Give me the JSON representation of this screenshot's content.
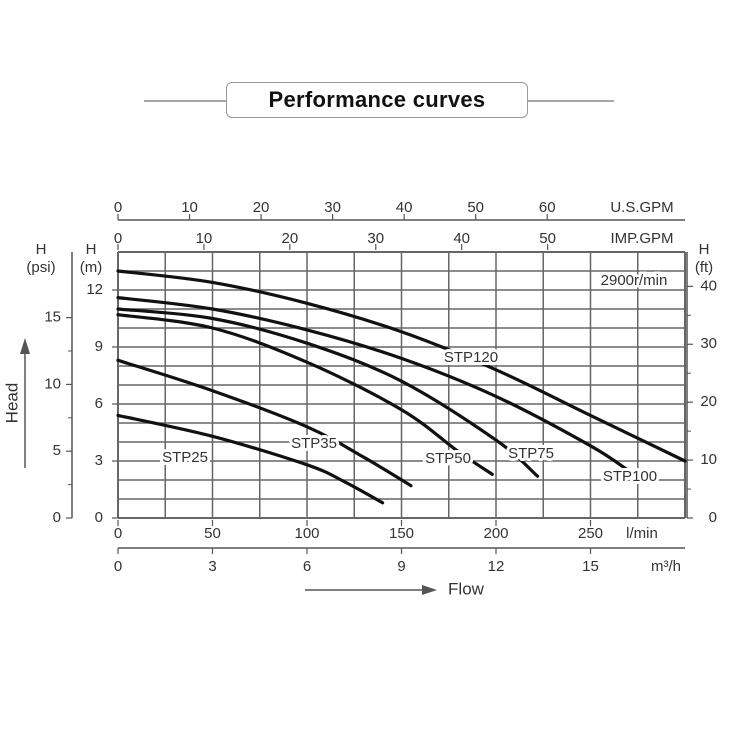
{
  "chart_data": {
    "type": "line",
    "title": "Performance curves",
    "speed_label": "2900r/min",
    "flow_axes": [
      {
        "key": "lmin",
        "position": "bottom-primary",
        "label": "l/min",
        "ticks": [
          0,
          50,
          100,
          150,
          200,
          250
        ],
        "lmin_per_unit": 1
      },
      {
        "key": "m3h",
        "position": "bottom-secondary",
        "label": "m³/h",
        "ticks": [
          0,
          3,
          6,
          9,
          12,
          15
        ],
        "lmin_per_unit": 16.667
      },
      {
        "key": "imp",
        "position": "top-inner",
        "label": "IMP.GPM",
        "ticks": [
          0,
          10,
          20,
          30,
          40,
          50
        ],
        "lmin_per_unit": 4.546
      },
      {
        "key": "us",
        "position": "top-outer",
        "label": "U.S.GPM",
        "ticks": [
          0,
          10,
          20,
          30,
          40,
          50,
          60
        ],
        "lmin_per_unit": 3.785
      }
    ],
    "head_axes": [
      {
        "key": "m",
        "position": "left-inner",
        "label_top": "H",
        "label_unit": "(m)",
        "ticks": [
          0,
          3,
          6,
          9,
          12
        ],
        "m_per_unit": 1
      },
      {
        "key": "psi",
        "position": "left-outer",
        "label_top": "H",
        "label_unit": "(psi)",
        "ticks": [
          0,
          5,
          10,
          15
        ],
        "m_per_unit": 0.7031
      },
      {
        "key": "ft",
        "position": "right",
        "label_top": "H",
        "label_unit": "(ft)",
        "ticks": [
          0,
          10,
          20,
          30,
          40
        ],
        "m_per_unit": 0.3048
      }
    ],
    "xlim": [
      0,
      300
    ],
    "ylim": [
      0,
      14
    ],
    "xlabel": "Flow",
    "ylabel": "Head",
    "series": [
      {
        "name": "STP25",
        "x": [
          0,
          50,
          100,
          120,
          140
        ],
        "y": [
          5.4,
          4.3,
          2.8,
          1.9,
          0.8
        ]
      },
      {
        "name": "STP35",
        "x": [
          0,
          50,
          100,
          130,
          155
        ],
        "y": [
          8.3,
          6.7,
          4.8,
          3.2,
          1.7
        ]
      },
      {
        "name": "STP50",
        "x": [
          0,
          50,
          100,
          150,
          180,
          198
        ],
        "y": [
          10.7,
          10.0,
          8.2,
          5.7,
          3.5,
          2.3
        ]
      },
      {
        "name": "STP75",
        "x": [
          0,
          50,
          100,
          150,
          200,
          222
        ],
        "y": [
          11.0,
          10.5,
          9.2,
          7.2,
          4.1,
          2.2
        ]
      },
      {
        "name": "STP100",
        "x": [
          0,
          50,
          100,
          150,
          200,
          250,
          270
        ],
        "y": [
          11.6,
          11.0,
          9.9,
          8.4,
          6.4,
          3.8,
          2.5
        ]
      },
      {
        "name": "STP120",
        "x": [
          0,
          50,
          100,
          150,
          200,
          250,
          300
        ],
        "y": [
          13.0,
          12.4,
          11.3,
          9.8,
          7.8,
          5.4,
          3.0
        ]
      }
    ]
  }
}
